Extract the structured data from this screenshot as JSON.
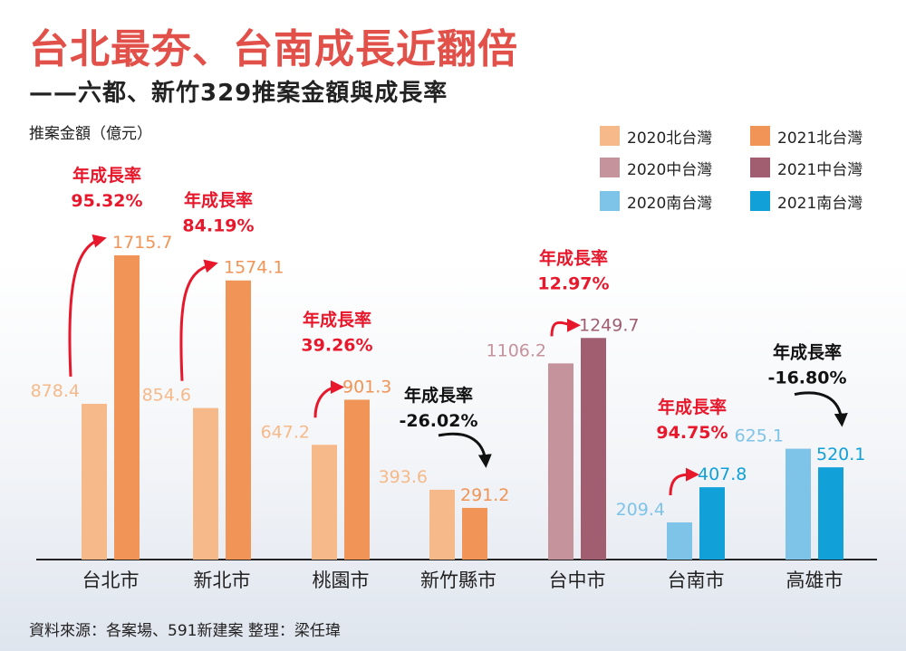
{
  "title": "台北最夯、台南成長近翻倍",
  "subtitle": "——六都、新竹329推案金額與成長率",
  "source": "資料來源：各案場、591新建案 整理：梁任瑋",
  "colors": {
    "north_2020": "#f6b98a",
    "north_2021": "#f09457",
    "central_2020": "#c4939b",
    "central_2021": "#a05e70",
    "south_2020": "#7ec3e8",
    "south_2021": "#11a0d8",
    "rate_positive": "#e8182c",
    "rate_negative": "#111111"
  },
  "legend": [
    {
      "label": "2020北台灣",
      "color": "#f6b98a"
    },
    {
      "label": "2021北台灣",
      "color": "#f09457"
    },
    {
      "label": "2020中台灣",
      "color": "#c4939b"
    },
    {
      "label": "2021中台灣",
      "color": "#a05e70"
    },
    {
      "label": "2020南台灣",
      "color": "#7ec3e8"
    },
    {
      "label": "2021南台灣",
      "color": "#11a0d8"
    }
  ],
  "chart_data": {
    "type": "bar",
    "title": "台北最夯、台南成長近翻倍",
    "subtitle": "——六都、新竹329推案金額與成長率",
    "ylabel": "推案金額（億元）",
    "xlabel": "",
    "ylim": [
      0,
      1800
    ],
    "grid": false,
    "legend_position": "top-right",
    "categories": [
      "台北市",
      "新北市",
      "桃園市",
      "新竹縣市",
      "台中市",
      "台南市",
      "高雄市"
    ],
    "regions": [
      "north",
      "north",
      "north",
      "north",
      "central",
      "south",
      "south"
    ],
    "series": [
      {
        "name": "2020",
        "values": [
          878.4,
          854.6,
          647.2,
          393.6,
          1106.2,
          209.4,
          625.1
        ]
      },
      {
        "name": "2021",
        "values": [
          1715.7,
          1574.1,
          901.3,
          291.2,
          1249.7,
          407.8,
          520.1
        ]
      }
    ],
    "growth_label": "年成長率",
    "growth_rates": [
      "95.32%",
      "84.19%",
      "39.26%",
      "-26.02%",
      "12.97%",
      "94.75%",
      "-16.80%"
    ]
  }
}
